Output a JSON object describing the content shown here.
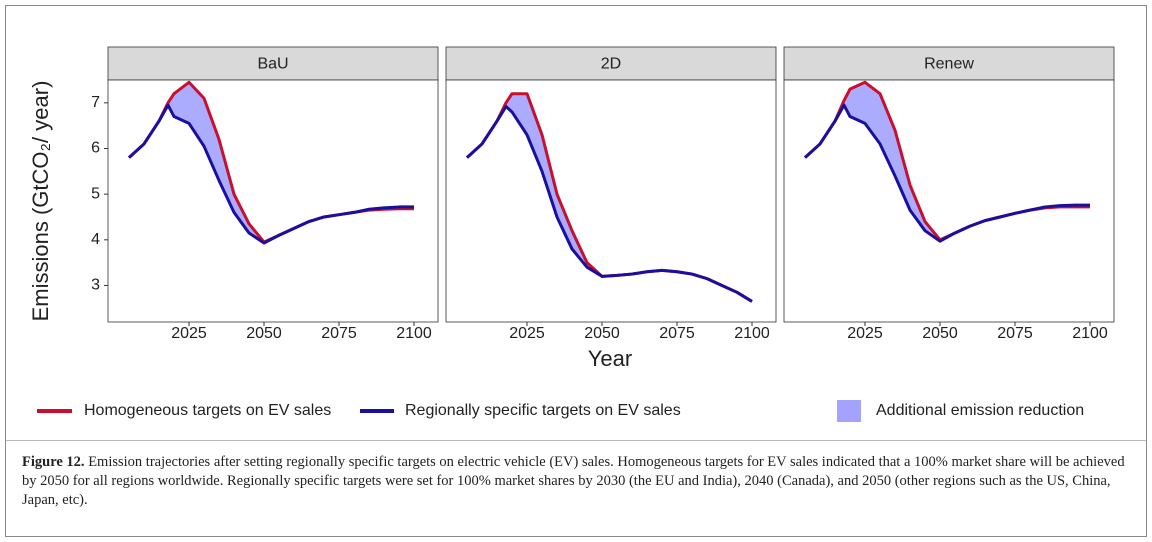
{
  "chart_data": [
    {
      "type": "line",
      "title": "BaU",
      "x": [
        2005,
        2010,
        2015,
        2018,
        2020,
        2025,
        2030,
        2035,
        2040,
        2045,
        2050,
        2055,
        2060,
        2065,
        2070,
        2075,
        2080,
        2085,
        2090,
        2095,
        2100
      ],
      "series": [
        {
          "name": "Homogeneous targets on EV sales",
          "color": "#c8102e",
          "values": [
            5.8,
            6.1,
            6.6,
            7.0,
            7.2,
            7.45,
            7.1,
            6.2,
            5.0,
            4.35,
            3.95,
            4.1,
            4.25,
            4.4,
            4.5,
            4.55,
            4.6,
            4.65,
            4.67,
            4.68,
            4.68
          ]
        },
        {
          "name": "Regionally specific targets on EV sales",
          "color": "#1a0f9e",
          "values": [
            5.8,
            6.1,
            6.6,
            6.95,
            6.7,
            6.55,
            6.05,
            5.3,
            4.6,
            4.15,
            3.93,
            4.1,
            4.25,
            4.4,
            4.5,
            4.55,
            4.6,
            4.67,
            4.7,
            4.72,
            4.72
          ]
        }
      ],
      "xlim": [
        1998,
        2108
      ],
      "ylim": [
        2.2,
        7.5
      ],
      "xticks": [
        2025,
        2050,
        2075,
        2100
      ],
      "yticks": [
        3,
        4,
        5,
        6,
        7
      ]
    },
    {
      "type": "line",
      "title": "2D",
      "x": [
        2005,
        2010,
        2015,
        2018,
        2020,
        2025,
        2030,
        2035,
        2040,
        2045,
        2050,
        2055,
        2060,
        2065,
        2070,
        2075,
        2080,
        2085,
        2090,
        2095,
        2100
      ],
      "series": [
        {
          "name": "Homogeneous targets on EV sales",
          "color": "#c8102e",
          "values": [
            5.8,
            6.1,
            6.6,
            7.0,
            7.2,
            7.2,
            6.3,
            5.0,
            4.2,
            3.5,
            3.2,
            3.22,
            3.25,
            3.3,
            3.33,
            3.3,
            3.25,
            3.15,
            3.0,
            2.85,
            2.65
          ]
        },
        {
          "name": "Regionally specific targets on EV sales",
          "color": "#1a0f9e",
          "values": [
            5.8,
            6.1,
            6.6,
            6.92,
            6.8,
            6.3,
            5.5,
            4.5,
            3.8,
            3.4,
            3.2,
            3.22,
            3.25,
            3.3,
            3.33,
            3.3,
            3.25,
            3.15,
            3.0,
            2.85,
            2.65
          ]
        }
      ],
      "xlim": [
        1998,
        2108
      ],
      "ylim": [
        2.2,
        7.5
      ],
      "xticks": [
        2025,
        2050,
        2075,
        2100
      ]
    },
    {
      "type": "line",
      "title": "Renew",
      "x": [
        2005,
        2010,
        2015,
        2018,
        2020,
        2025,
        2030,
        2035,
        2040,
        2045,
        2050,
        2055,
        2060,
        2065,
        2070,
        2075,
        2080,
        2085,
        2090,
        2095,
        2100
      ],
      "series": [
        {
          "name": "Homogeneous targets on EV sales",
          "color": "#c8102e",
          "values": [
            5.8,
            6.1,
            6.6,
            7.05,
            7.3,
            7.45,
            7.2,
            6.4,
            5.2,
            4.4,
            4.0,
            4.15,
            4.3,
            4.42,
            4.5,
            4.58,
            4.65,
            4.7,
            4.72,
            4.72,
            4.72
          ]
        },
        {
          "name": "Regionally specific targets on EV sales",
          "color": "#1a0f9e",
          "values": [
            5.8,
            6.1,
            6.6,
            6.95,
            6.7,
            6.55,
            6.1,
            5.4,
            4.65,
            4.2,
            3.97,
            4.15,
            4.3,
            4.42,
            4.5,
            4.58,
            4.65,
            4.72,
            4.75,
            4.76,
            4.76
          ]
        }
      ],
      "xlim": [
        1998,
        2108
      ],
      "ylim": [
        2.2,
        7.5
      ],
      "xticks": [
        2025,
        2050,
        2075,
        2100
      ]
    }
  ],
  "x_label": "Year",
  "y_label": "Emissions (GtCO₂/ year)",
  "fill": {
    "label": "Additional emission reduction",
    "color": "#a3a3ff"
  },
  "caption": {
    "label": "Figure 12.",
    "text": "Emission trajectories after setting regionally specific targets on electric vehicle (EV) sales. Homogeneous targets for EV sales indicated that a 100% market share will be achieved by 2050 for all regions worldwide. Regionally specific targets were set for 100% market shares by 2030 (the EU and India), 2040 (Canada), and 2050 (other regions such as the US, China, Japan, etc)."
  }
}
